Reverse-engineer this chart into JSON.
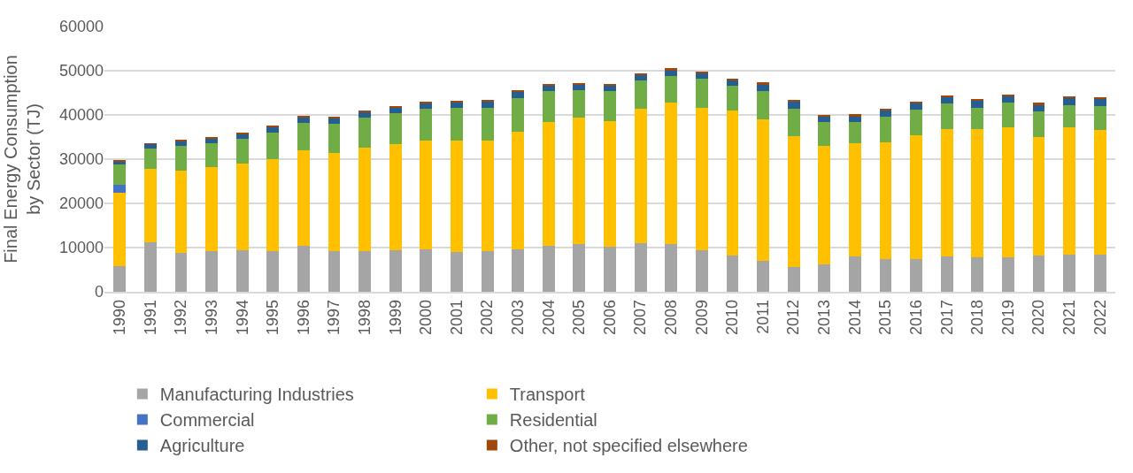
{
  "chart_data": {
    "type": "bar",
    "stacked": true,
    "ylabel": "Final Energy Consumption by Sector (TJ)",
    "categories": [
      "1990",
      "1991",
      "1992",
      "1993",
      "1994",
      "1995",
      "1996",
      "1997",
      "1998",
      "1999",
      "2000",
      "2001",
      "2002",
      "2003",
      "2004",
      "2005",
      "2006",
      "2007",
      "2008",
      "2009",
      "2010",
      "2011",
      "2012",
      "2013",
      "2014",
      "2015",
      "2016",
      "2017",
      "2018",
      "2019",
      "2020",
      "2021",
      "2022"
    ],
    "series": [
      {
        "name": "Manufacturing Industries",
        "color": "#a5a5a5",
        "values": [
          5860,
          11200,
          8850,
          9300,
          9500,
          9300,
          10500,
          9200,
          9200,
          9500,
          9700,
          9050,
          9250,
          9700,
          10450,
          10900,
          10250,
          11000,
          10750,
          9350,
          8200,
          7050,
          5650,
          6300,
          8000,
          7400,
          7400,
          8000,
          7750,
          7750,
          8300,
          8400,
          8350
        ]
      },
      {
        "name": "Transport",
        "color": "#ffc000",
        "values": [
          16540,
          16700,
          18600,
          18850,
          19550,
          20750,
          21500,
          22300,
          23400,
          24000,
          24600,
          25250,
          25050,
          26550,
          28050,
          28600,
          28400,
          30400,
          32100,
          32250,
          32900,
          32000,
          29550,
          26750,
          25600,
          26500,
          28000,
          28900,
          29000,
          29450,
          26800,
          28750,
          28350
        ]
      },
      {
        "name": "Commercial",
        "color": "#4472c4",
        "values": [
          1900,
          0,
          0,
          0,
          0,
          0,
          0,
          0,
          0,
          0,
          0,
          0,
          0,
          0,
          0,
          0,
          0,
          0,
          0,
          0,
          0,
          0,
          0,
          0,
          0,
          0,
          0,
          0,
          0,
          0,
          0,
          0,
          0
        ]
      },
      {
        "name": "Residential",
        "color": "#70ad47",
        "values": [
          4500,
          4600,
          5650,
          5450,
          5600,
          6000,
          6300,
          6600,
          6750,
          6900,
          7100,
          7300,
          7400,
          7650,
          6850,
          6100,
          6750,
          6450,
          5950,
          6600,
          5600,
          6350,
          6300,
          5300,
          4750,
          5650,
          5750,
          5800,
          4950,
          5600,
          5650,
          5150,
          5400
        ]
      },
      {
        "name": "Agriculture",
        "color": "#255e91",
        "values": [
          750,
          900,
          1000,
          1100,
          1050,
          1150,
          1200,
          1200,
          1250,
          1200,
          1300,
          1300,
          1350,
          1400,
          1300,
          1200,
          1350,
          1200,
          1200,
          1200,
          1200,
          1500,
          1500,
          1350,
          1350,
          1450,
          1450,
          1450,
          1500,
          1450,
          1550,
          1600,
          1600
        ]
      },
      {
        "name": "Other, not specified elsewhere",
        "color": "#9e480e",
        "values": [
          200,
          200,
          200,
          200,
          350,
          300,
          250,
          300,
          350,
          300,
          400,
          400,
          350,
          250,
          300,
          250,
          200,
          300,
          650,
          350,
          300,
          500,
          300,
          400,
          500,
          450,
          400,
          350,
          350,
          450,
          450,
          250,
          300
        ]
      }
    ],
    "ylim": [
      0,
      60000
    ],
    "yticks": [
      0,
      10000,
      20000,
      30000,
      40000,
      50000,
      60000
    ],
    "grid": "y",
    "legend": "bottom"
  }
}
